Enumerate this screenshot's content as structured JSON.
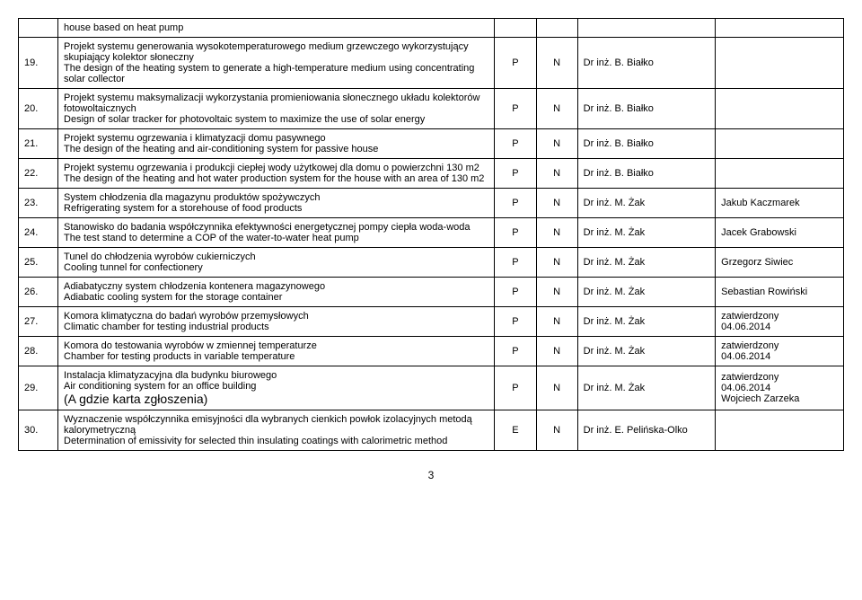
{
  "pageNumber": "3",
  "headerRow": {
    "desc": "house based on heat pump"
  },
  "rows": [
    {
      "num": "19.",
      "desc_pl": "Projekt systemu generowania wysokotemperaturowego medium grzewczego wykorzystujący skupiający kolektor słoneczny",
      "desc_en": "The design of the heating system to generate a high-temperature medium using concentrating solar collector",
      "col1": "P",
      "col2": "N",
      "supervisor": "Dr inż. B. Białko",
      "extra": ""
    },
    {
      "num": "20.",
      "desc_pl": "Projekt systemu maksymalizacji wykorzystania promieniowania słonecznego układu kolektorów fotowoltaicznych",
      "desc_en": "Design of solar tracker for photovoltaic system to maximize the use of solar energy",
      "col1": "P",
      "col2": "N",
      "supervisor": "Dr inż. B. Białko",
      "extra": ""
    },
    {
      "num": "21.",
      "desc_pl": "Projekt systemu ogrzewania i klimatyzacji domu pasywnego",
      "desc_en": "The design of the heating and air-conditioning system for passive house",
      "col1": "P",
      "col2": "N",
      "supervisor": "Dr inż. B. Białko",
      "extra": ""
    },
    {
      "num": "22.",
      "desc_pl": "Projekt systemu ogrzewania i produkcji ciepłej wody użytkowej dla domu o powierzchni 130 m2",
      "desc_en": "The design of the heating and hot water production system for the house with an area of 130 m2",
      "col1": "P",
      "col2": "N",
      "supervisor": "Dr inż. B. Białko",
      "extra": ""
    },
    {
      "num": "23.",
      "desc_pl": "System chłodzenia dla magazynu produktów spożywczych",
      "desc_en": "Refrigerating system for a storehouse of food products",
      "col1": "P",
      "col2": "N",
      "supervisor": "Dr inż. M. Żak",
      "extra": "Jakub Kaczmarek"
    },
    {
      "num": "24.",
      "desc_pl": "Stanowisko do badania współczynnika efektywności energetycznej pompy ciepła woda-woda",
      "desc_en": "The test stand to determine a COP of the water-to-water heat pump",
      "col1": "P",
      "col2": "N",
      "supervisor": "Dr inż. M. Żak",
      "extra": "Jacek Grabowski"
    },
    {
      "num": "25.",
      "desc_pl": "Tunel do chłodzenia wyrobów cukierniczych",
      "desc_en": "Cooling tunnel for confectionery",
      "col1": "P",
      "col2": "N",
      "supervisor": "Dr inż. M. Żak",
      "extra": "Grzegorz Siwiec"
    },
    {
      "num": "26.",
      "desc_pl": "Adiabatyczny system chłodzenia kontenera magazynowego",
      "desc_en": "Adiabatic cooling system for the storage container",
      "col1": "P",
      "col2": "N",
      "supervisor": "Dr inż. M. Żak",
      "extra": "Sebastian Rowiński"
    },
    {
      "num": "27.",
      "desc_pl": "Komora klimatyczna do badań wyrobów przemysłowych",
      "desc_en": "Climatic chamber for testing industrial products",
      "col1": "P",
      "col2": "N",
      "supervisor": "Dr inż. M. Żak",
      "extra": "zatwierdzony\n04.06.2014"
    },
    {
      "num": "28.",
      "desc_pl": "Komora do testowania wyrobów w zmiennej temperaturze",
      "desc_en": "Chamber for testing products in variable temperature",
      "col1": "P",
      "col2": "N",
      "supervisor": "Dr inż. M. Żak",
      "extra": "zatwierdzony\n04.06.2014"
    },
    {
      "num": "29.",
      "desc_pl": "Instalacja klimatyzacyjna dla budynku biurowego",
      "desc_en": "Air conditioning system for an office building",
      "desc_note": "(A gdzie karta zgłoszenia)",
      "col1": "P",
      "col2": "N",
      "supervisor": "Dr inż. M. Żak",
      "extra": "zatwierdzony\n04.06.2014\nWojciech Zarzeka"
    },
    {
      "num": "30.",
      "desc_pl": "Wyznaczenie współczynnika emisyjności dla wybranych cienkich powłok izolacyjnych metodą kalorymetryczną",
      "desc_en": "Determination of emissivity for selected thin insulating coatings with calorimetric method",
      "col1": "E",
      "col2": "N",
      "supervisor": "Dr inż. E. Pelińska-Olko",
      "extra": ""
    }
  ]
}
